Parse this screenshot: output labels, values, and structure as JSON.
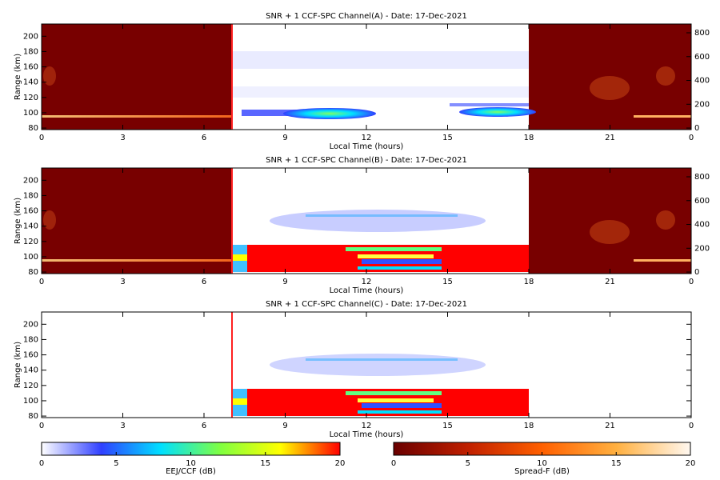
{
  "chart_data": [
    {
      "type": "heatmap",
      "title": "SNR + 1 CCF-SPC Channel(A) - Date: 17-Dec-2021",
      "xlabel": "Local Time (hours)",
      "ylabel": "Range (km)",
      "xlim": [
        0,
        24
      ],
      "xticks": [
        0,
        3,
        6,
        9,
        12,
        15,
        18,
        21,
        {
          "value": 24,
          "label": "0"
        }
      ],
      "ylim": [
        78,
        216
      ],
      "yticks": [
        80,
        100,
        120,
        140,
        160,
        180,
        200
      ],
      "y2lim": [
        -13,
        874
      ],
      "y2ticks": [
        0,
        200,
        400,
        600,
        800
      ]
    },
    {
      "type": "heatmap",
      "title": "SNR + 1 CCF-SPC Channel(B) - Date: 17-Dec-2021",
      "xlabel": "Local Time (hours)",
      "ylabel": "Range (km)",
      "xlim": [
        0,
        24
      ],
      "xticks": [
        0,
        3,
        6,
        9,
        12,
        15,
        18,
        21,
        {
          "value": 24,
          "label": "0"
        }
      ],
      "ylim": [
        78,
        216
      ],
      "yticks": [
        80,
        100,
        120,
        140,
        160,
        180,
        200
      ],
      "y2lim": [
        -13,
        874
      ],
      "y2ticks": [
        0,
        200,
        400,
        600,
        800
      ]
    },
    {
      "type": "heatmap",
      "title": "SNR + 1 CCF-SPC Channel(C) - Date: 17-Dec-2021",
      "xlabel": "Local Time (hours)",
      "ylabel": "Range (km)",
      "xlim": [
        0,
        24
      ],
      "xticks": [
        0,
        3,
        6,
        9,
        12,
        15,
        18,
        21,
        {
          "value": 24,
          "label": "0"
        }
      ],
      "ylim": [
        78,
        216
      ],
      "yticks": [
        80,
        100,
        120,
        140,
        160,
        180,
        200
      ]
    },
    {
      "type": "colorbar",
      "xlabel": "EEJ/CCF (dB)",
      "xlim": [
        0,
        20
      ],
      "xticks": [
        0,
        5,
        10,
        15,
        20
      ],
      "colors": [
        "#ffffff",
        "#3040ff",
        "#00e0ff",
        "#80ff40",
        "#ffff00",
        "#ff0000"
      ]
    },
    {
      "type": "colorbar",
      "xlabel": "Spread-F (dB)",
      "xlim": [
        0,
        20
      ],
      "xticks": [
        0,
        5,
        10,
        15,
        20
      ],
      "colors": [
        "#6a0000",
        "#c02000",
        "#ff6000",
        "#ffb040",
        "#fff8f0"
      ]
    }
  ]
}
